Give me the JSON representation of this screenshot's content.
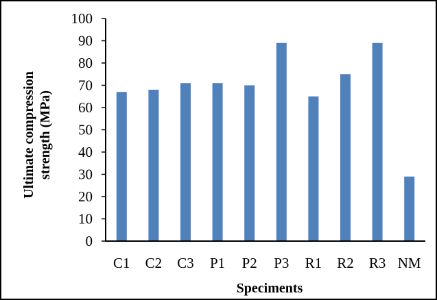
{
  "chart_data": {
    "type": "bar",
    "title": "",
    "xlabel": "Speciments",
    "ylabel_lines": [
      "Ultimate compression",
      "strength (MPa)"
    ],
    "categories": [
      "C1",
      "C2",
      "C3",
      "P1",
      "P2",
      "P3",
      "R1",
      "R2",
      "R3",
      "NM"
    ],
    "values": [
      67,
      68,
      71,
      71,
      70,
      89,
      65,
      75,
      89,
      29
    ],
    "ylim": [
      0,
      100
    ],
    "yticks": [
      0,
      10,
      20,
      30,
      40,
      50,
      60,
      70,
      80,
      90,
      100
    ],
    "grid": false,
    "legend": "none",
    "bar_color": "#4F81BD"
  }
}
